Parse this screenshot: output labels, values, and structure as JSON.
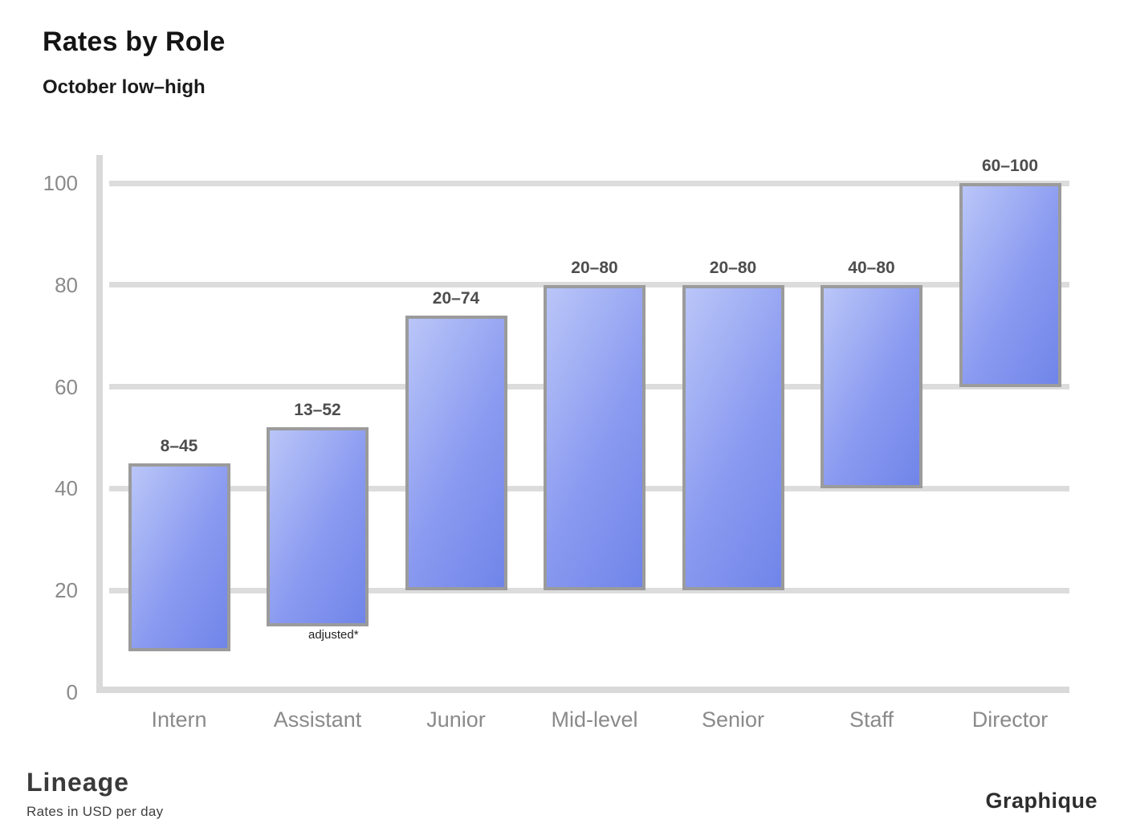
{
  "page": {
    "background_color": "#ffffff"
  },
  "header": {
    "title": "Rates by Role",
    "subtitle": "October low–high"
  },
  "chart_data": {
    "type": "bar",
    "subtype": "floating-range-columns",
    "title": "Rates by Role",
    "subtitle": "October low–high",
    "categories": [
      "Intern",
      "Assistant",
      "Junior",
      "Mid-level",
      "Senior",
      "Staff",
      "Director"
    ],
    "series": [
      {
        "name": "Rate range",
        "low": [
          8,
          13,
          20,
          20,
          20,
          40,
          60
        ],
        "high": [
          45,
          52,
          74,
          80,
          80,
          80,
          100
        ]
      }
    ],
    "bar_value_labels": [
      "8–45",
      "13–52",
      "20–74",
      "20–80",
      "20–80",
      "40–80",
      "60–100"
    ],
    "annotation": "adjusted*",
    "xlabel": "",
    "ylabel": "",
    "y_ticks": [
      0,
      20,
      40,
      60,
      80,
      100
    ],
    "ylim": [
      0,
      100
    ],
    "grid": true,
    "legend": false,
    "colors": {
      "bar_gradient_start": "#bac6f8",
      "bar_gradient_end": "#7085e9",
      "bar_border": "#9b9b9b",
      "gridline": "#dcdcdc",
      "axis": "#d9d9d9",
      "value_label": "#4d4d4d",
      "tick_label": "#8a8a8a"
    }
  },
  "footer": {
    "brand": "Lineage",
    "tagline": "Rates in USD per day",
    "attribution": "Graphique"
  }
}
